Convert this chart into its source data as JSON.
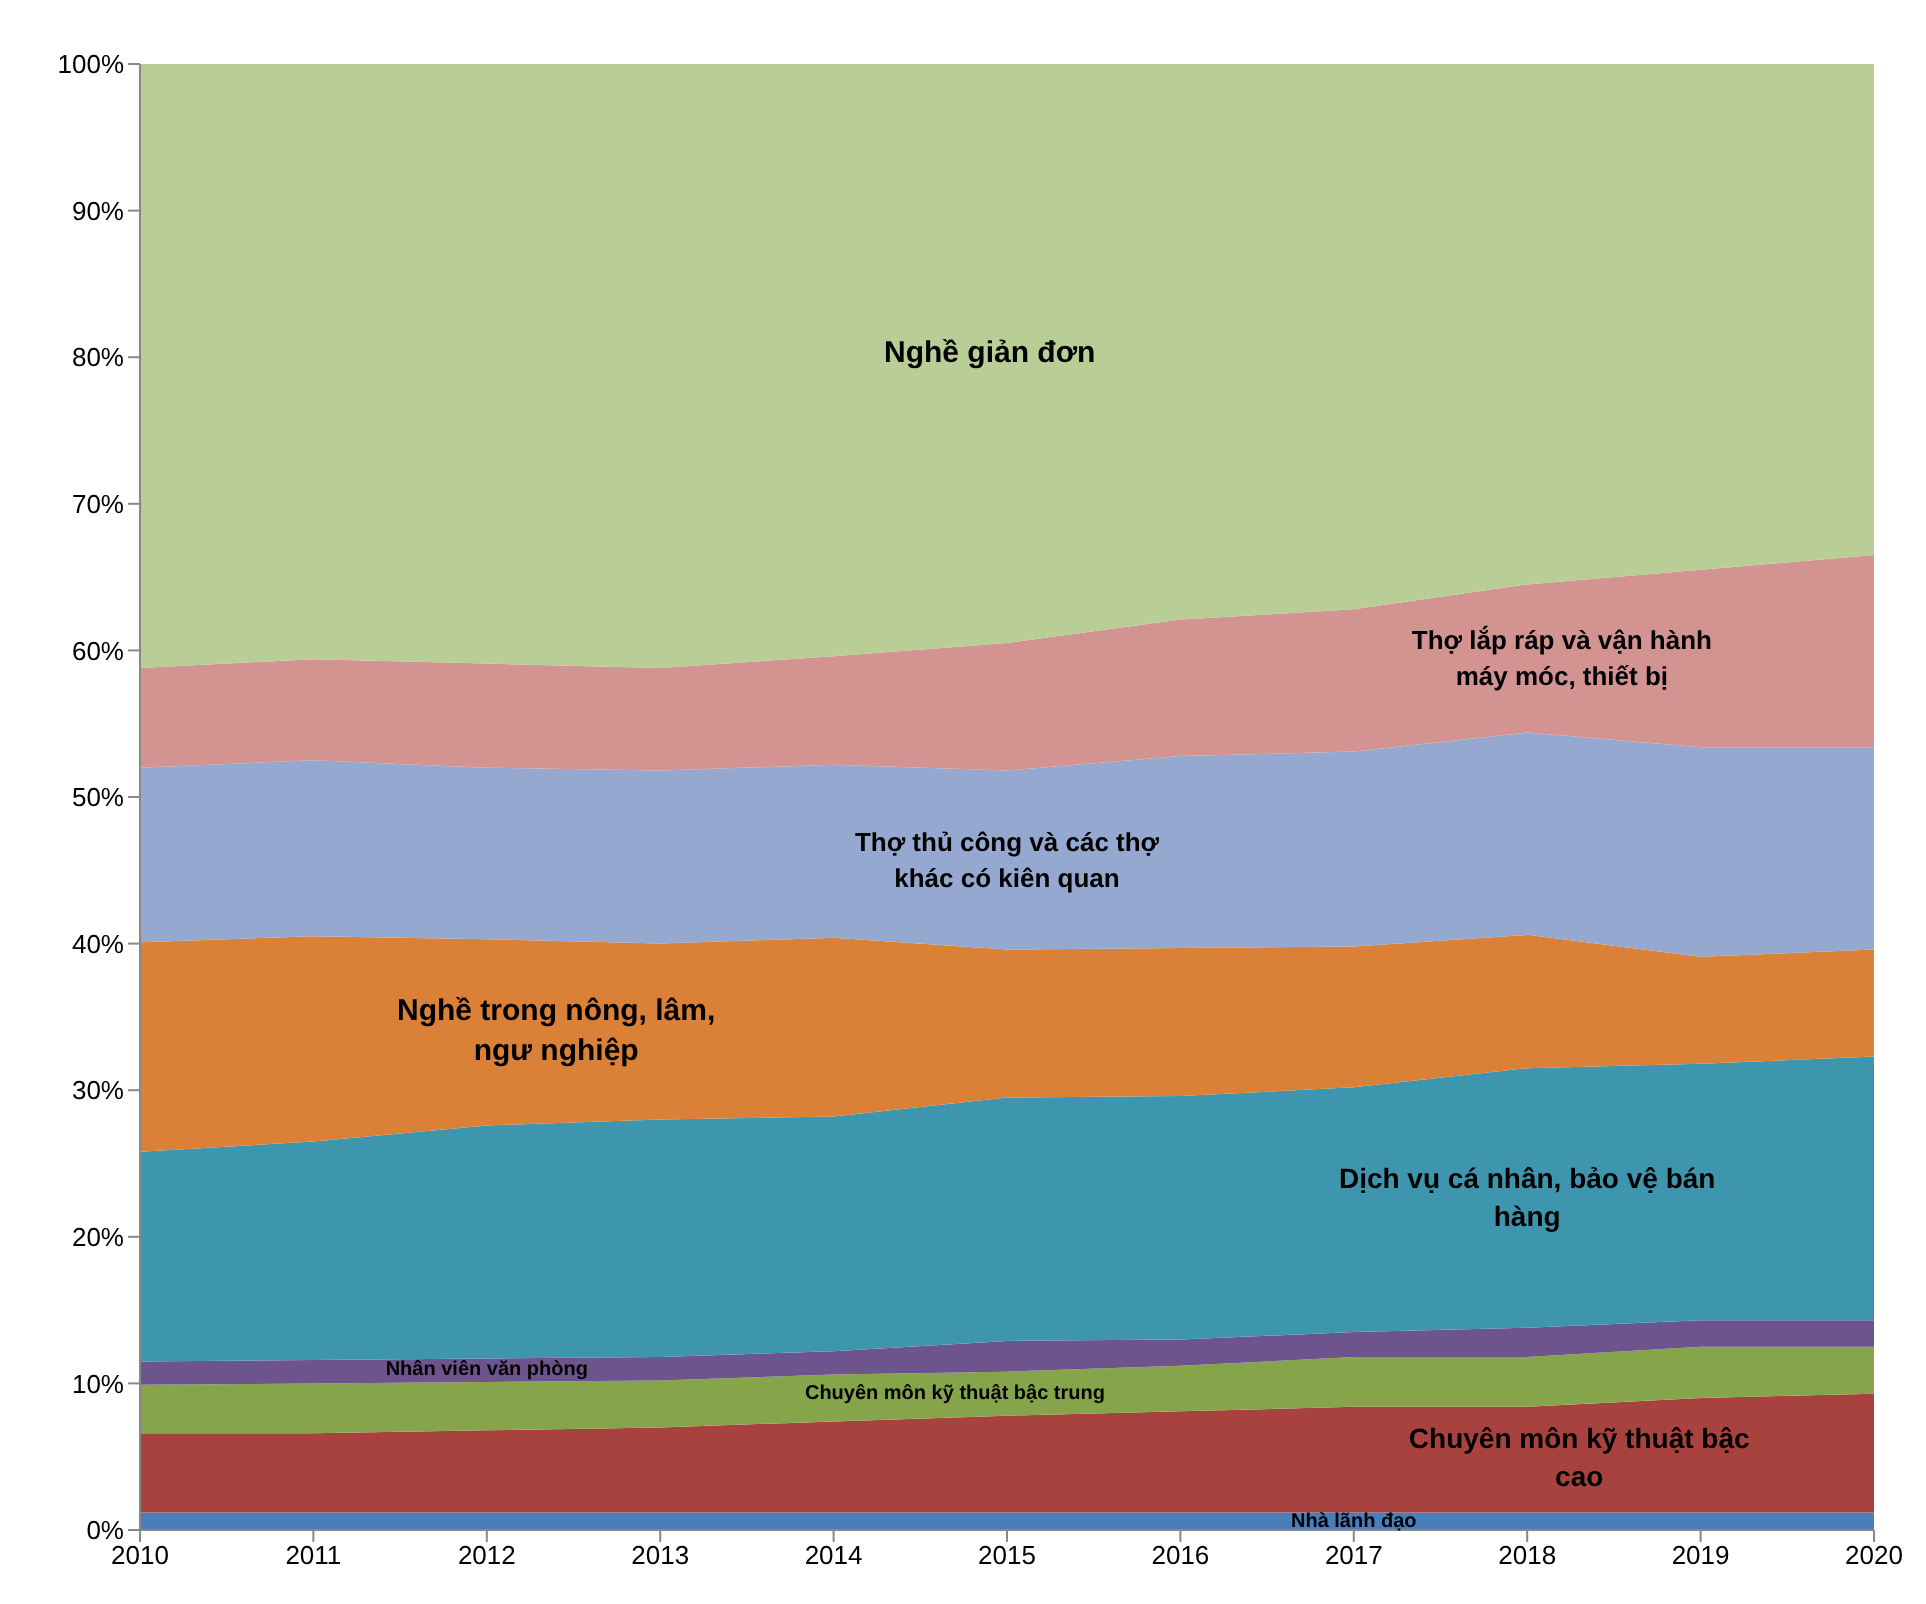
{
  "chart_data": {
    "type": "area",
    "stacked": true,
    "x": [
      2010,
      2011,
      2012,
      2013,
      2014,
      2015,
      2016,
      2017,
      2018,
      2019,
      2020
    ],
    "xlim": [
      2010,
      2020
    ],
    "xticks": [
      2010,
      2011,
      2012,
      2013,
      2014,
      2015,
      2016,
      2017,
      2018,
      2019,
      2020
    ],
    "ylim": [
      0,
      100
    ],
    "yticks": [
      {
        "value": 0,
        "label": "0%"
      },
      {
        "value": 10,
        "label": "10%"
      },
      {
        "value": 20,
        "label": "20%"
      },
      {
        "value": 30,
        "label": "30%"
      },
      {
        "value": 40,
        "label": "40%"
      },
      {
        "value": 50,
        "label": "50%"
      },
      {
        "value": 60,
        "label": "60%"
      },
      {
        "value": 70,
        "label": "70%"
      },
      {
        "value": 80,
        "label": "80%"
      },
      {
        "value": 90,
        "label": "90%"
      },
      {
        "value": 100,
        "label": "100%"
      }
    ],
    "series": [
      {
        "name": "Nhà lãnh đạo",
        "color": "#4a7ebb",
        "values": [
          1.2,
          1.2,
          1.2,
          1.2,
          1.2,
          1.2,
          1.2,
          1.2,
          1.2,
          1.2,
          1.2
        ]
      },
      {
        "name": "Chuyên môn kỹ thuật bậc cao",
        "color": "#a8423f",
        "values": [
          5.4,
          5.4,
          5.6,
          5.8,
          6.2,
          6.6,
          6.9,
          7.2,
          7.2,
          7.8,
          8.1
        ]
      },
      {
        "name": "Chuyên môn kỹ thuật bậc trung",
        "color": "#86a44a",
        "values": [
          3.3,
          3.4,
          3.3,
          3.2,
          3.2,
          3.0,
          3.1,
          3.4,
          3.4,
          3.5,
          3.2
        ]
      },
      {
        "name": "Nhân viên văn phòng",
        "color": "#6e548d",
        "values": [
          1.6,
          1.6,
          1.6,
          1.6,
          1.6,
          2.1,
          1.8,
          1.7,
          2.0,
          1.8,
          1.8
        ]
      },
      {
        "name": "Dịch vụ cá nhân, bảo vệ bán hàng",
        "color": "#3d96ae",
        "values": [
          14.3,
          14.9,
          15.9,
          16.2,
          16.0,
          16.6,
          16.6,
          16.7,
          17.7,
          17.5,
          18.0
        ]
      },
      {
        "name": "Nghề trong nông, lâm, ngư nghiệp",
        "color": "#da8137",
        "values": [
          14.3,
          14.0,
          12.7,
          12.0,
          12.2,
          10.1,
          10.1,
          9.6,
          9.1,
          7.3,
          7.3
        ]
      },
      {
        "name": "Thợ thủ công và các thợ khác có kiên quan",
        "color": "#95a9d0",
        "values": [
          11.9,
          12.0,
          11.7,
          11.8,
          11.8,
          12.2,
          13.1,
          13.3,
          13.8,
          14.3,
          13.8
        ]
      },
      {
        "name": "Thợ lắp ráp và vận hành máy móc, thiết bị",
        "color": "#d39391",
        "values": [
          6.8,
          6.9,
          7.1,
          7.0,
          7.4,
          8.7,
          9.3,
          9.7,
          10.1,
          12.1,
          13.1
        ]
      },
      {
        "name": "Nghề giản đơn",
        "color": "#b9cd96",
        "values": [
          41.2,
          40.6,
          40.9,
          41.2,
          40.4,
          39.5,
          37.9,
          37.2,
          35.5,
          34.5,
          33.5
        ]
      }
    ]
  }
}
